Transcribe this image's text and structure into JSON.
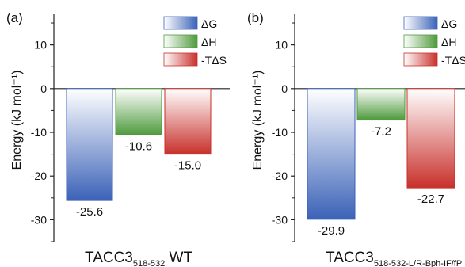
{
  "chart_data": [
    {
      "type": "bar",
      "panel_label": "(a)",
      "categories": [
        "ΔG",
        "ΔH",
        "-TΔS"
      ],
      "values": [
        -25.6,
        -10.6,
        -15.0
      ],
      "value_labels": [
        "-25.6",
        "-10.6",
        "-15.0"
      ],
      "ylabel": "Energy (kJ mol⁻¹)",
      "xlabel_main": "TACC3",
      "xlabel_sub": "518-532",
      "xlabel_suffix": " WT",
      "ylim": [
        -35,
        17
      ],
      "yticks": [
        -30,
        -20,
        -10,
        0,
        10
      ],
      "legend_position": "top-right",
      "grid": false
    },
    {
      "type": "bar",
      "panel_label": "(b)",
      "categories": [
        "ΔG",
        "ΔH",
        "-TΔS"
      ],
      "values": [
        -29.9,
        -7.2,
        -22.7
      ],
      "value_labels": [
        "-29.9",
        "-7.2",
        "-22.7"
      ],
      "ylabel": "Energy (kJ mol⁻¹)",
      "xlabel_main": "TACC3",
      "xlabel_sub": "518-532-L/R-Bph-IF/fP",
      "xlabel_suffix": "",
      "ylim": [
        -35,
        17
      ],
      "yticks": [
        -30,
        -20,
        -10,
        0,
        10
      ],
      "legend_position": "top-right",
      "grid": false
    }
  ],
  "series_colors": {
    "ΔG": [
      "#ffffff",
      "#3b62b8"
    ],
    "ΔH": [
      "#ffffff",
      "#4e9a3c"
    ],
    "-TΔS": [
      "#ffffff",
      "#c8302b"
    ]
  }
}
